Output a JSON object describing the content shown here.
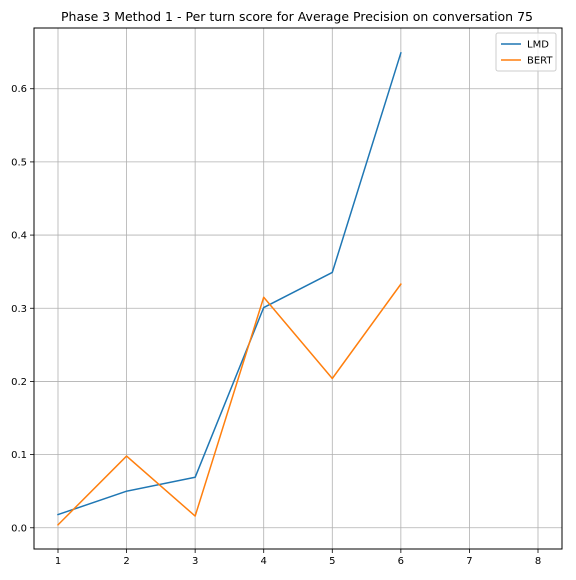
{
  "chart_data": {
    "type": "line",
    "title": "Phase 3 Method 1 - Per turn score for Average Precision on conversation 75",
    "xlabel": "",
    "ylabel": "",
    "x": [
      1,
      2,
      3,
      4,
      5,
      6
    ],
    "xlim": [
      0.65,
      8.35
    ],
    "ylim": [
      -0.029,
      0.683
    ],
    "xticks": [
      1,
      2,
      3,
      4,
      5,
      6,
      7,
      8
    ],
    "yticks": [
      0.0,
      0.1,
      0.2,
      0.3,
      0.4,
      0.5,
      0.6
    ],
    "ytick_labels": [
      "0.0",
      "0.1",
      "0.2",
      "0.3",
      "0.4",
      "0.5",
      "0.6"
    ],
    "grid": true,
    "legend_position": "top-right",
    "series": [
      {
        "name": "LMD",
        "color": "#1f77b4",
        "values": [
          0.018,
          0.05,
          0.069,
          0.301,
          0.349,
          0.649
        ]
      },
      {
        "name": "BERT",
        "color": "#ff7f0e",
        "values": [
          0.004,
          0.098,
          0.016,
          0.315,
          0.204,
          0.333
        ]
      }
    ]
  }
}
